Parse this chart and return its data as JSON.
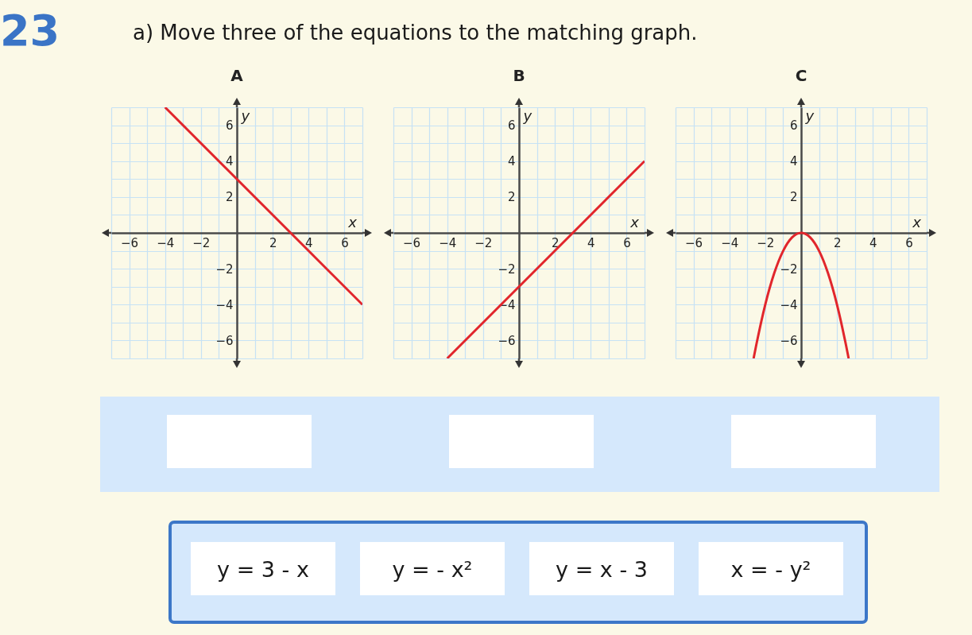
{
  "chart_data": [
    {
      "type": "other",
      "title": "23",
      "subtitle": "a) Move three of the equations to the matching graph."
    },
    {
      "type": "line",
      "title": "A",
      "xlabel": "x",
      "ylabel": "y",
      "x": [
        -4,
        7
      ],
      "values": [
        7,
        -4
      ],
      "color": "#e1262c",
      "xlim": [
        -7,
        7
      ],
      "ylim": [
        -7,
        7
      ],
      "xticks": [
        {
          "value": -7,
          "label": null
        },
        -6,
        {
          "value": -5,
          "label": null
        },
        -4,
        {
          "value": -3,
          "label": null
        },
        -2,
        {
          "value": -1,
          "label": null
        },
        {
          "value": 0,
          "label": null
        },
        {
          "value": 1,
          "label": null
        },
        2,
        {
          "value": 3,
          "label": null
        },
        4,
        {
          "value": 5,
          "label": null
        },
        6,
        {
          "value": 7,
          "label": null
        }
      ],
      "yticks": [
        {
          "value": -7,
          "label": null
        },
        -6,
        {
          "value": -5,
          "label": null
        },
        -4,
        {
          "value": -3,
          "label": null
        },
        -2,
        {
          "value": -1,
          "label": null
        },
        {
          "value": 0,
          "label": null
        },
        {
          "value": 1,
          "label": null
        },
        2,
        {
          "value": 3,
          "label": null
        },
        4,
        {
          "value": 5,
          "label": null
        },
        6,
        {
          "value": 7,
          "label": null
        }
      ],
      "grid": true
    },
    {
      "type": "line",
      "title": "B",
      "xlabel": "x",
      "ylabel": "y",
      "x": [
        -4,
        7
      ],
      "values": [
        -7,
        4
      ],
      "color": "#e1262c",
      "xlim": [
        -7,
        7
      ],
      "ylim": [
        -7,
        7
      ],
      "xticks": [
        {
          "value": -7,
          "label": null
        },
        -6,
        {
          "value": -5,
          "label": null
        },
        -4,
        {
          "value": -3,
          "label": null
        },
        -2,
        {
          "value": -1,
          "label": null
        },
        {
          "value": 0,
          "label": null
        },
        {
          "value": 1,
          "label": null
        },
        2,
        {
          "value": 3,
          "label": null
        },
        4,
        {
          "value": 5,
          "label": null
        },
        6,
        {
          "value": 7,
          "label": null
        }
      ],
      "yticks": [
        {
          "value": -7,
          "label": null
        },
        -6,
        {
          "value": -5,
          "label": null
        },
        -4,
        {
          "value": -3,
          "label": null
        },
        -2,
        {
          "value": -1,
          "label": null
        },
        {
          "value": 0,
          "label": null
        },
        {
          "value": 1,
          "label": null
        },
        2,
        {
          "value": 3,
          "label": null
        },
        4,
        {
          "value": 5,
          "label": null
        },
        6,
        {
          "value": 7,
          "label": null
        }
      ],
      "grid": true
    },
    {
      "type": "line",
      "title": "C",
      "xlabel": "x",
      "ylabel": "y",
      "x": [
        -2.65,
        -2.5,
        -2,
        -1.5,
        -1,
        -0.5,
        0,
        0.5,
        1,
        1.5,
        2,
        2.5,
        2.65
      ],
      "values": [
        -7,
        -6.25,
        -4,
        -2.25,
        -1,
        -0.25,
        0,
        -0.25,
        -1,
        -2.25,
        -4,
        -6.25,
        -7
      ],
      "color": "#e1262c",
      "xlim": [
        -7,
        7
      ],
      "ylim": [
        -7,
        7
      ],
      "xticks": [
        {
          "value": -7,
          "label": null
        },
        -6,
        {
          "value": -5,
          "label": null
        },
        -4,
        {
          "value": -3,
          "label": null
        },
        -2,
        {
          "value": -1,
          "label": null
        },
        {
          "value": 0,
          "label": null
        },
        {
          "value": 1,
          "label": null
        },
        2,
        {
          "value": 3,
          "label": null
        },
        4,
        {
          "value": 5,
          "label": null
        },
        6,
        {
          "value": 7,
          "label": null
        }
      ],
      "yticks": [
        {
          "value": -7,
          "label": null
        },
        -6,
        {
          "value": -5,
          "label": null
        },
        -4,
        {
          "value": -3,
          "label": null
        },
        -2,
        {
          "value": -1,
          "label": null
        },
        {
          "value": 0,
          "label": null
        },
        {
          "value": 1,
          "label": null
        },
        2,
        {
          "value": 3,
          "label": null
        },
        4,
        {
          "value": 5,
          "label": null
        },
        6,
        {
          "value": 7,
          "label": null
        }
      ],
      "grid": true
    },
    {
      "type": "other",
      "annotations": [
        "y = 3 - x",
        "y = - x²",
        "y = x - 3",
        "x = - y²"
      ]
    }
  ]
}
